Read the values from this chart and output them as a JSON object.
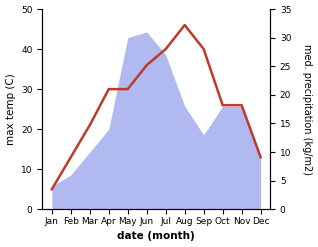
{
  "months": [
    "Jan",
    "Feb",
    "Mar",
    "Apr",
    "May",
    "Jun",
    "Jul",
    "Aug",
    "Sep",
    "Oct",
    "Nov",
    "Dec"
  ],
  "month_indices": [
    0,
    1,
    2,
    3,
    4,
    5,
    6,
    7,
    8,
    9,
    10,
    11
  ],
  "temp_max": [
    5,
    13,
    21,
    30,
    30,
    36,
    40,
    46,
    40,
    26,
    26,
    13
  ],
  "precipitation": [
    4,
    6,
    10,
    14,
    30,
    31,
    27,
    18,
    13,
    18,
    18,
    9
  ],
  "temp_ylim": [
    0,
    50
  ],
  "precip_ylim": [
    0,
    35
  ],
  "fill_color": "#b0baf0",
  "line_color": "#c0392b",
  "line_width": 1.8,
  "ylabel_left": "max temp (C)",
  "ylabel_right": "med. precipitation (kg/m2)",
  "xlabel": "date (month)",
  "bg_color": "#ffffff",
  "label_fontsize": 7.5,
  "tick_fontsize": 6.5
}
